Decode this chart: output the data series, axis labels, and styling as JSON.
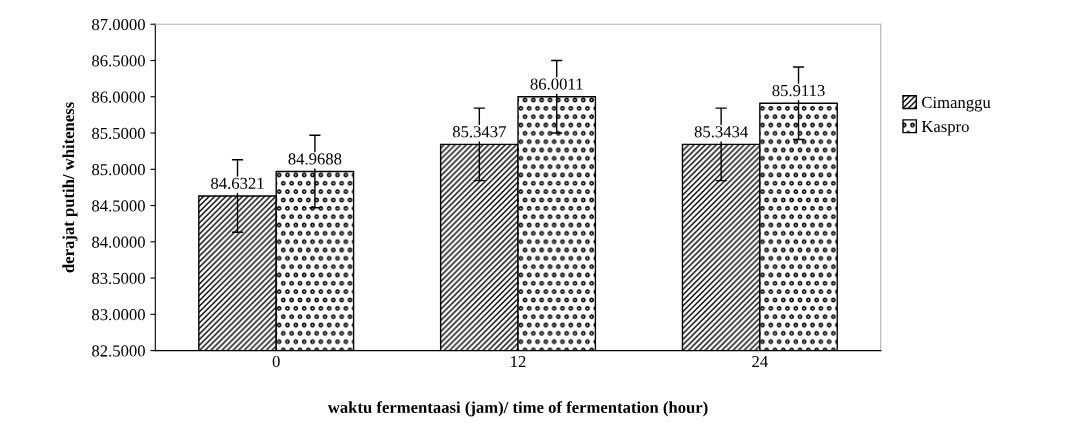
{
  "chart_data": {
    "type": "bar",
    "xlabel": "waktu fermentaasi (jam)/ time of fermentation (hour)",
    "ylabel": "derajat putih/ whiteness",
    "categories": [
      "0",
      "12",
      "24"
    ],
    "series": [
      {
        "name": "Cimanggu",
        "color": "#000000",
        "values": [
          84.6321,
          85.3437,
          85.3434
        ],
        "errors": [
          0.5,
          0.5,
          0.5
        ]
      },
      {
        "name": "Kaspro",
        "color": "#000000",
        "values": [
          84.9688,
          86.0011,
          85.9113
        ],
        "errors": [
          0.5,
          0.5,
          0.5
        ]
      }
    ],
    "ylim": [
      82.5,
      87.0
    ],
    "yticks": [
      {
        "value": 82.5,
        "label": "82.5000"
      },
      {
        "value": 83.0,
        "label": "83.0000"
      },
      {
        "value": 83.5,
        "label": "83.5000"
      },
      {
        "value": 84.0,
        "label": "84.0000"
      },
      {
        "value": 84.5,
        "label": "84.5000"
      },
      {
        "value": 85.0,
        "label": "85.0000"
      },
      {
        "value": 85.5,
        "label": "85.5000"
      },
      {
        "value": 86.0,
        "label": "86.0000"
      },
      {
        "value": 86.5,
        "label": "86.5000"
      },
      {
        "value": 87.0,
        "label": "87.0000"
      }
    ],
    "data_labels": true,
    "grid": false,
    "legend": "right"
  }
}
